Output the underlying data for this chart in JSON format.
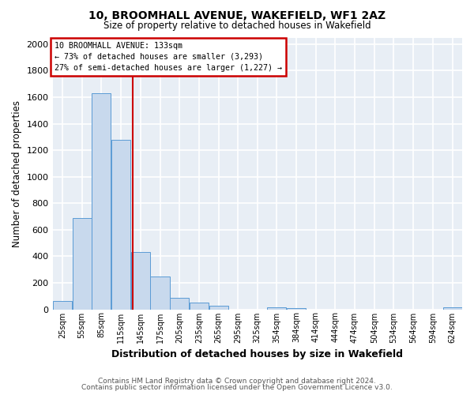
{
  "title": "10, BROOMHALL AVENUE, WAKEFIELD, WF1 2AZ",
  "subtitle": "Size of property relative to detached houses in Wakefield",
  "xlabel": "Distribution of detached houses by size in Wakefield",
  "ylabel": "Number of detached properties",
  "bar_color": "#c8d9ed",
  "bar_edge_color": "#5b9bd5",
  "background_color": "#e8eef5",
  "grid_color": "#ffffff",
  "annotation_box_color": "#cc0000",
  "vline_color": "#cc0000",
  "vline_x": 133,
  "categories": [
    "25sqm",
    "55sqm",
    "85sqm",
    "115sqm",
    "145sqm",
    "175sqm",
    "205sqm",
    "235sqm",
    "265sqm",
    "295sqm",
    "325sqm",
    "354sqm",
    "384sqm",
    "414sqm",
    "444sqm",
    "474sqm",
    "504sqm",
    "534sqm",
    "564sqm",
    "594sqm",
    "624sqm"
  ],
  "bin_edges": [
    10,
    40,
    70,
    100,
    130,
    160,
    190,
    220,
    250,
    280,
    310,
    339,
    369,
    399,
    429,
    459,
    489,
    519,
    549,
    579,
    609,
    639
  ],
  "values": [
    65,
    690,
    1630,
    1280,
    430,
    250,
    85,
    50,
    25,
    0,
    0,
    15,
    10,
    0,
    0,
    0,
    0,
    0,
    0,
    0,
    15
  ],
  "ylim": [
    0,
    2050
  ],
  "yticks": [
    0,
    200,
    400,
    600,
    800,
    1000,
    1200,
    1400,
    1600,
    1800,
    2000
  ],
  "annotation_title": "10 BROOMHALL AVENUE: 133sqm",
  "annotation_line1": "← 73% of detached houses are smaller (3,293)",
  "annotation_line2": "27% of semi-detached houses are larger (1,227) →",
  "footer_line1": "Contains HM Land Registry data © Crown copyright and database right 2024.",
  "footer_line2": "Contains public sector information licensed under the Open Government Licence v3.0.",
  "fig_bg": "#ffffff"
}
